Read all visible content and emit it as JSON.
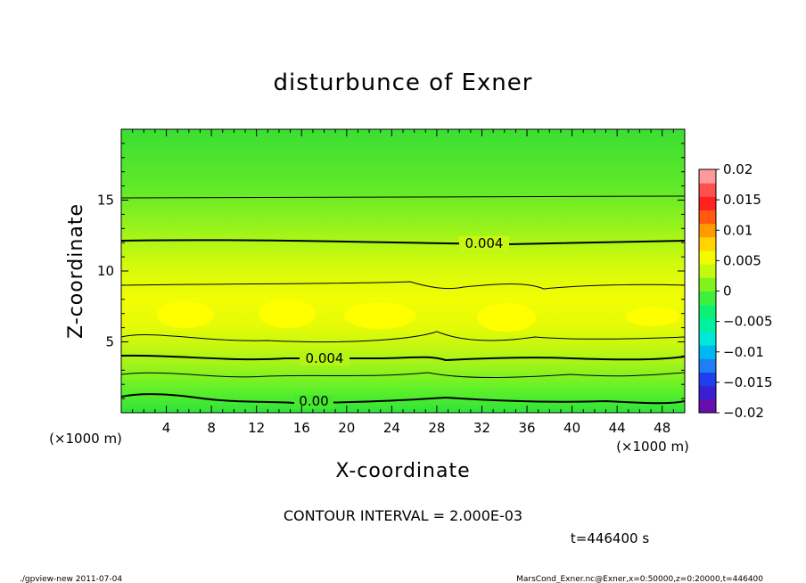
{
  "chart_data": {
    "type": "heatmap",
    "title": "disturbunce of Exner",
    "xlabel": "X-coordinate",
    "ylabel": "Z-coordinate",
    "x_unit": "(×1000 m)",
    "x_unit_right": "(×1000 m)",
    "z_unit": "(×1000 m)",
    "xlim": [
      0,
      50
    ],
    "ylim": [
      0,
      20
    ],
    "x_ticks": [
      "4",
      "8",
      "12",
      "16",
      "20",
      "24",
      "28",
      "32",
      "36",
      "40",
      "44",
      "48"
    ],
    "y_ticks": [
      "5",
      "10",
      "15"
    ],
    "colorbar": {
      "ticks": [
        "0.02",
        "0.015",
        "0.01",
        "0.005",
        "0",
        "−0.005",
        "−0.01",
        "−0.015",
        "−0.02"
      ],
      "range": [
        -0.02,
        0.02
      ]
    },
    "contour_labels": [
      "0.004",
      "0.004",
      "0.00"
    ],
    "contours": [
      {
        "value": 0.0,
        "z_mean": 0.8
      },
      {
        "value": 0.002,
        "z_mean": 2.2
      },
      {
        "value": 0.004,
        "z_mean": 3.8
      },
      {
        "value": 0.006,
        "z_mean": 5.1
      },
      {
        "value": 0.006,
        "z_mean": 9.0
      },
      {
        "value": 0.004,
        "z_mean": 12.0
      },
      {
        "value": 0.002,
        "z_mean": 15.2
      }
    ],
    "max_region_z": 7.0
  },
  "contour_interval_text": "CONTOUR INTERVAL = 2.000E-03",
  "time_text": "t=446400 s",
  "footer_left": "./gpview-new   2011-07-04",
  "footer_right": "MarsCond_Exner.nc@Exner,x=0:50000,z=0:20000,t=446400"
}
